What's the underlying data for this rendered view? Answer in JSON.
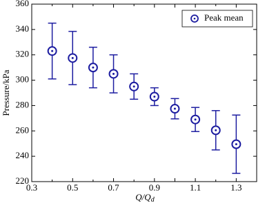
{
  "chart_data": {
    "type": "errorbar",
    "x_label": "Q/Q",
    "x_label_sub": "d",
    "y_label": "Pressure/kPa",
    "x": [
      0.4,
      0.5,
      0.6,
      0.7,
      0.8,
      0.9,
      1,
      1.1,
      1.2,
      1.3
    ],
    "series": [
      {
        "name": "Peak mean",
        "color": "#1c1ca0",
        "values": [
          323,
          317.5,
          310,
          305,
          295,
          287,
          277.5,
          269,
          260.5,
          249.5
        ],
        "errors": [
          22,
          21,
          16,
          15,
          10,
          7,
          8,
          9.5,
          15.5,
          23
        ]
      }
    ],
    "xlim": [
      0.3,
      1.4
    ],
    "ylim": [
      220,
      360
    ],
    "xticks": [
      0.3,
      0.4,
      0.5,
      0.6,
      0.7,
      0.8,
      0.9,
      {
        "value": 1,
        "label": "1.0"
      },
      1.1,
      1.2,
      1.3,
      1.4
    ],
    "xtick_labels_shown": [
      0.3,
      0.5,
      0.7,
      0.9,
      {
        "value": 1.1,
        "label": "1.1"
      },
      1.3
    ],
    "yticks": [
      220,
      240,
      260,
      280,
      300,
      320,
      340,
      360
    ],
    "legend": "top-right"
  }
}
